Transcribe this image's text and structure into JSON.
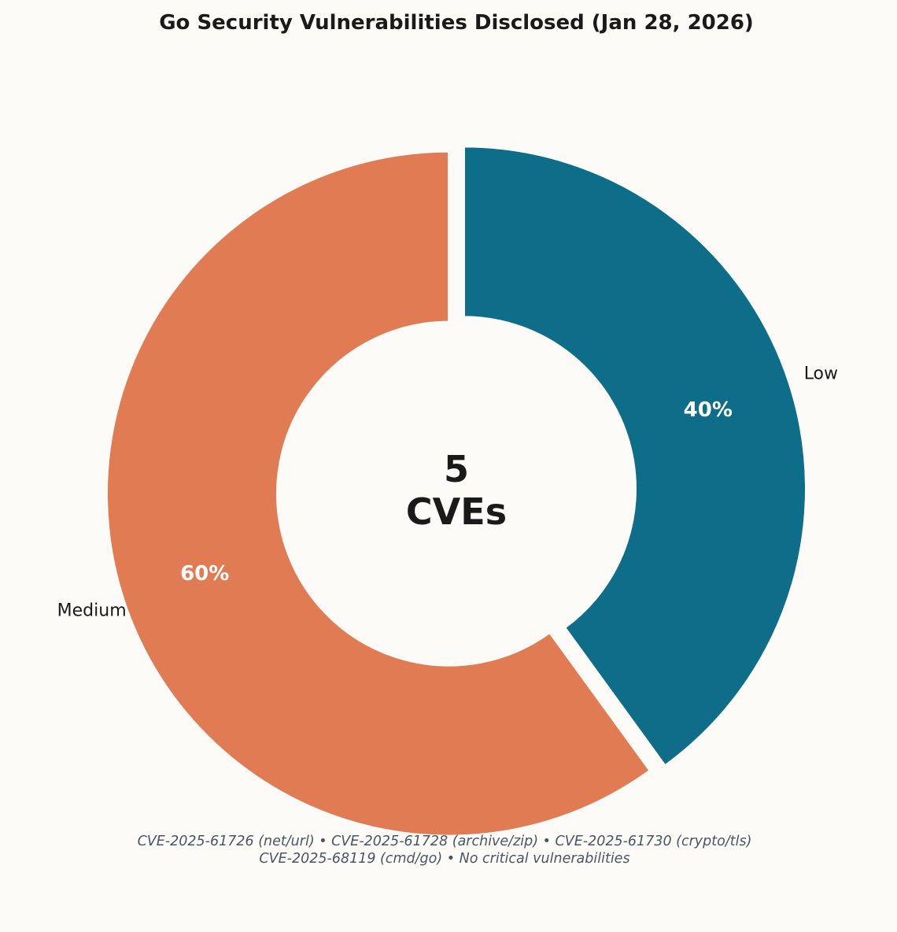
{
  "chart_data": {
    "type": "pie",
    "style": "donut",
    "title": "Go Security Vulnerabilities Disclosed (Jan 28, 2026)",
    "categories": [
      "Low",
      "Medium"
    ],
    "values": [
      40,
      60
    ],
    "value_labels": [
      "40%",
      "60%"
    ],
    "colors": [
      "#0e6e8a",
      "#e07b53"
    ],
    "exploded": true,
    "center_text": {
      "line1": "5",
      "line2": "CVEs"
    },
    "footnote": {
      "line1": "CVE-2025-61726 (net/url) • CVE-2025-61728 (archive/zip) • CVE-2025-61730 (crypto/tls)",
      "line2": "CVE-2025-68119 (cmd/go) • No critical vulnerabilities"
    }
  }
}
